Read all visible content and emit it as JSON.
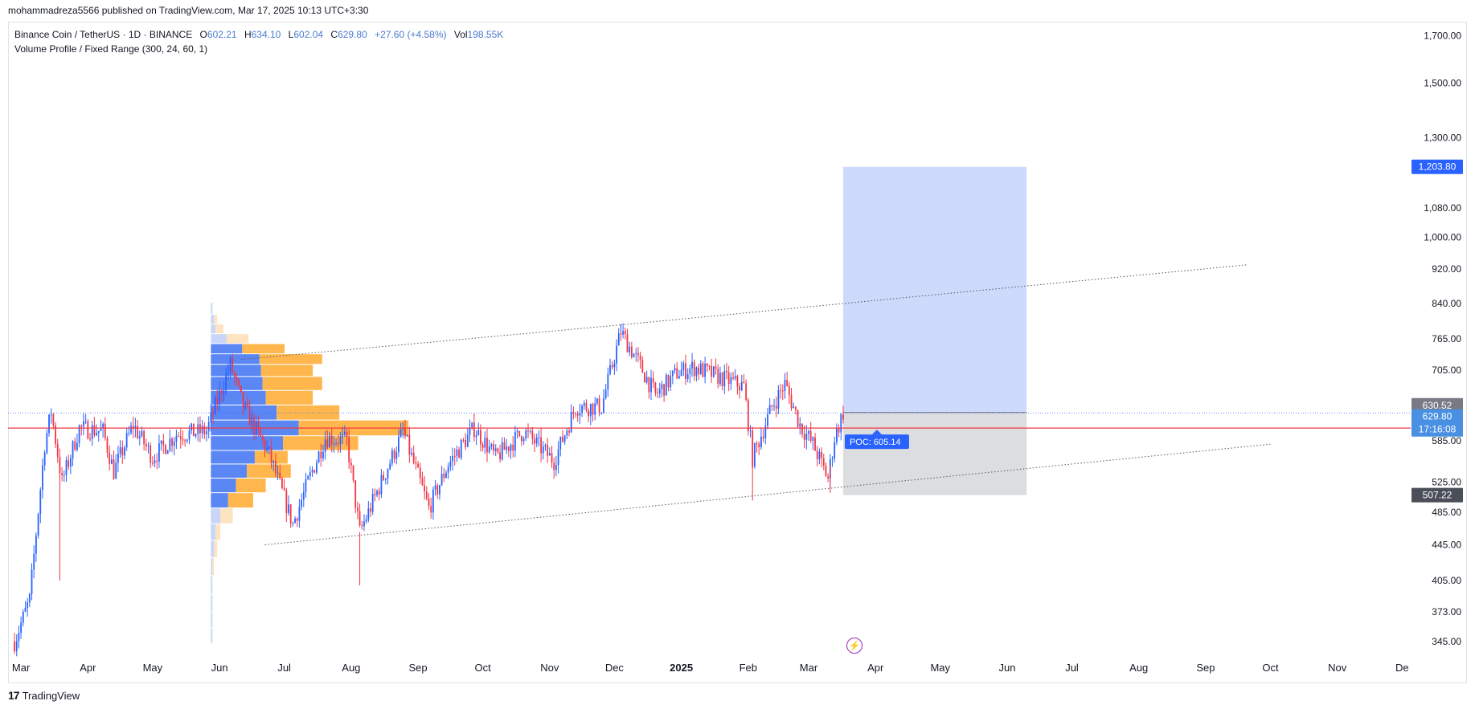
{
  "header": {
    "published_line": "mohammadreza5566 published on TradingView.com, Mar 17, 2025 10:13 UTC+3:30"
  },
  "legend": {
    "symbol": "Binance Coin / TetherUS · 1D · BINANCE",
    "open_label": "O",
    "open": "602.21",
    "high_label": "H",
    "high": "634.10",
    "low_label": "L",
    "low": "602.04",
    "close_label": "C",
    "close": "629.80",
    "change": "+27.60 (+4.58%)",
    "vol_label": "Vol",
    "vol": "198.55K",
    "indicator": "Volume Profile / Fixed Range (300, 24, 60, 1)"
  },
  "footer": {
    "brand": "TradingView",
    "logo_glyph": "17"
  },
  "colors": {
    "up": "#2962ff",
    "down": "#f23645",
    "poc": "#f23645",
    "profile_up": "#5b87f5",
    "profile_down": "#ffb74d",
    "target_zone": "#c5d3fb",
    "stop_zone": "#d8d9dc",
    "accent": "#2962ff"
  },
  "chart_data": {
    "type": "candlestick",
    "symbol": "BNBUSDT",
    "interval": "1D",
    "y_scale": "log",
    "ylim": [
      330,
      1760
    ],
    "y_ticks": [
      345,
      373,
      405,
      445,
      485,
      525,
      585,
      705,
      765,
      840,
      920,
      1000,
      1080,
      1300,
      1500,
      1700
    ],
    "y_tick_labels": [
      "345.00",
      "373.00",
      "405.00",
      "445.00",
      "485.00",
      "525.00",
      "585.00",
      "705.00",
      "765.00",
      "840.00",
      "920.00",
      "1,000.00",
      "1,080.00",
      "1,300.00",
      "1,500.00",
      "1,700.00"
    ],
    "x_labels": [
      "Mar",
      "Apr",
      "May",
      "Jun",
      "Jul",
      "Aug",
      "Sep",
      "Oct",
      "Nov",
      "Dec",
      "2025",
      "Feb",
      "Mar",
      "Apr",
      "May",
      "Jun",
      "Jul",
      "Aug",
      "Sep",
      "Oct",
      "Nov",
      "De"
    ],
    "price_path": [
      {
        "date": "2024-02-27",
        "price": 345
      },
      {
        "date": "2024-03-05",
        "price": 385
      },
      {
        "date": "2024-03-12",
        "price": 580
      },
      {
        "date": "2024-03-15",
        "price": 632
      },
      {
        "date": "2024-03-20",
        "price": 525
      },
      {
        "date": "2024-03-28",
        "price": 605
      },
      {
        "date": "2024-04-08",
        "price": 600
      },
      {
        "date": "2024-04-13",
        "price": 540
      },
      {
        "date": "2024-04-22",
        "price": 610
      },
      {
        "date": "2024-05-01",
        "price": 560
      },
      {
        "date": "2024-05-12",
        "price": 595
      },
      {
        "date": "2024-05-26",
        "price": 600
      },
      {
        "date": "2024-06-06",
        "price": 715
      },
      {
        "date": "2024-06-12",
        "price": 640
      },
      {
        "date": "2024-06-24",
        "price": 565
      },
      {
        "date": "2024-07-05",
        "price": 470
      },
      {
        "date": "2024-07-12",
        "price": 525
      },
      {
        "date": "2024-07-20",
        "price": 590
      },
      {
        "date": "2024-07-30",
        "price": 585
      },
      {
        "date": "2024-08-05",
        "price": 460
      },
      {
        "date": "2024-08-15",
        "price": 525
      },
      {
        "date": "2024-08-25",
        "price": 600
      },
      {
        "date": "2024-09-06",
        "price": 490
      },
      {
        "date": "2024-09-15",
        "price": 550
      },
      {
        "date": "2024-09-27",
        "price": 605
      },
      {
        "date": "2024-10-07",
        "price": 560
      },
      {
        "date": "2024-10-20",
        "price": 600
      },
      {
        "date": "2024-11-03",
        "price": 555
      },
      {
        "date": "2024-11-13",
        "price": 640
      },
      {
        "date": "2024-11-25",
        "price": 640
      },
      {
        "date": "2024-12-04",
        "price": 780
      },
      {
        "date": "2024-12-12",
        "price": 720
      },
      {
        "date": "2024-12-20",
        "price": 660
      },
      {
        "date": "2024-12-30",
        "price": 700
      },
      {
        "date": "2025-01-07",
        "price": 710
      },
      {
        "date": "2025-01-20",
        "price": 690
      },
      {
        "date": "2025-01-30",
        "price": 675
      },
      {
        "date": "2025-02-03",
        "price": 560
      },
      {
        "date": "2025-02-12",
        "price": 640
      },
      {
        "date": "2025-02-18",
        "price": 680
      },
      {
        "date": "2025-02-25",
        "price": 610
      },
      {
        "date": "2025-03-03",
        "price": 580
      },
      {
        "date": "2025-03-10",
        "price": 530
      },
      {
        "date": "2025-03-13",
        "price": 590
      },
      {
        "date": "2025-03-17",
        "price": 629.8
      }
    ],
    "wick_extremes": [
      {
        "date": "2024-03-19",
        "low": 405
      },
      {
        "date": "2024-08-05",
        "low": 400
      },
      {
        "date": "2024-12-04",
        "high": 794
      },
      {
        "date": "2025-02-03",
        "low": 500
      },
      {
        "date": "2025-03-11",
        "low": 510
      }
    ],
    "position": {
      "entry": 630.52,
      "target": 1203.8,
      "stop": 507.22,
      "start_date": "2025-03-17",
      "end_date": "2025-06-10"
    },
    "current_price": 629.8,
    "countdown": "17:16:08",
    "poc": {
      "label": "POC: 605.14",
      "price": 605.14
    },
    "volume_profile": {
      "range_start": "2024-05-28",
      "levels": [
        {
          "price": 350,
          "up": 1,
          "down": 0
        },
        {
          "price": 365,
          "up": 1,
          "down": 0
        },
        {
          "price": 380,
          "up": 1,
          "down": 0
        },
        {
          "price": 400,
          "up": 1,
          "down": 0
        },
        {
          "price": 420,
          "up": 1,
          "down": 1
        },
        {
          "price": 440,
          "up": 2,
          "down": 2
        },
        {
          "price": 460,
          "up": 3,
          "down": 3
        },
        {
          "price": 480,
          "up": 6,
          "down": 8
        },
        {
          "price": 500,
          "up": 11,
          "down": 16
        },
        {
          "price": 520,
          "up": 16,
          "down": 19
        },
        {
          "price": 540,
          "up": 23,
          "down": 28
        },
        {
          "price": 560,
          "up": 28,
          "down": 21
        },
        {
          "price": 580,
          "up": 46,
          "down": 48
        },
        {
          "price": 605,
          "up": 56,
          "down": 70
        },
        {
          "price": 630,
          "up": 42,
          "down": 40
        },
        {
          "price": 655,
          "up": 35,
          "down": 30
        },
        {
          "price": 680,
          "up": 33,
          "down": 38
        },
        {
          "price": 705,
          "up": 32,
          "down": 33
        },
        {
          "price": 725,
          "up": 31,
          "down": 40
        },
        {
          "price": 745,
          "up": 20,
          "down": 27
        },
        {
          "price": 765,
          "up": 10,
          "down": 14
        },
        {
          "price": 785,
          "up": 3,
          "down": 5
        },
        {
          "price": 805,
          "up": 2,
          "down": 2
        },
        {
          "price": 825,
          "up": 1,
          "down": 0
        }
      ]
    },
    "trendlines": [
      {
        "from": {
          "date": "2024-06-11",
          "price": 725
        },
        "to": {
          "date": "2024-12-04",
          "price": 794
        },
        "style": "dotted"
      },
      {
        "from": {
          "date": "2024-12-04",
          "price": 794
        },
        "to": {
          "date": "2025-09-20",
          "price": 930
        },
        "style": "dotted"
      },
      {
        "from": {
          "date": "2024-06-22",
          "price": 445
        },
        "to": {
          "date": "2025-10-01",
          "price": 580
        },
        "style": "dotted"
      }
    ]
  }
}
